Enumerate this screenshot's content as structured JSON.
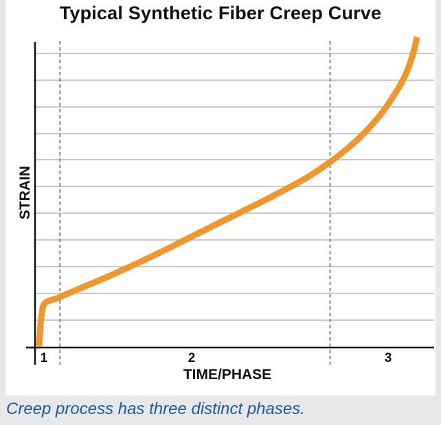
{
  "chart_data": {
    "type": "line",
    "title": "Typical Synthetic Fiber Creep Curve",
    "xlabel": "TIME/PHASE",
    "ylabel": "STRAIN",
    "phase_labels": [
      "1",
      "2",
      "3"
    ],
    "phase_boundaries": [
      0.055,
      0.77
    ],
    "series": [
      {
        "color": "#f0962a",
        "x": [
          0,
          0.004,
          0.01,
          0.02,
          0.05,
          0.1,
          0.2,
          0.3,
          0.4,
          0.5,
          0.6,
          0.7,
          0.77,
          0.84,
          0.9,
          0.94,
          0.97,
          0.99,
          1.0
        ],
        "y": [
          0,
          0.085,
          0.145,
          0.165,
          0.18,
          0.21,
          0.27,
          0.335,
          0.405,
          0.475,
          0.545,
          0.62,
          0.685,
          0.765,
          0.855,
          0.935,
          1.01,
          1.09,
          1.15
        ]
      }
    ],
    "xlim": [
      0,
      1
    ],
    "ylim": [
      0,
      1.15
    ],
    "grid": true,
    "colors": {
      "curve": "#f0962a",
      "grid": "#a9a9a9",
      "axis": "#111111",
      "caption": "#1f5a96"
    }
  },
  "caption": "Creep process has three distinct phases."
}
